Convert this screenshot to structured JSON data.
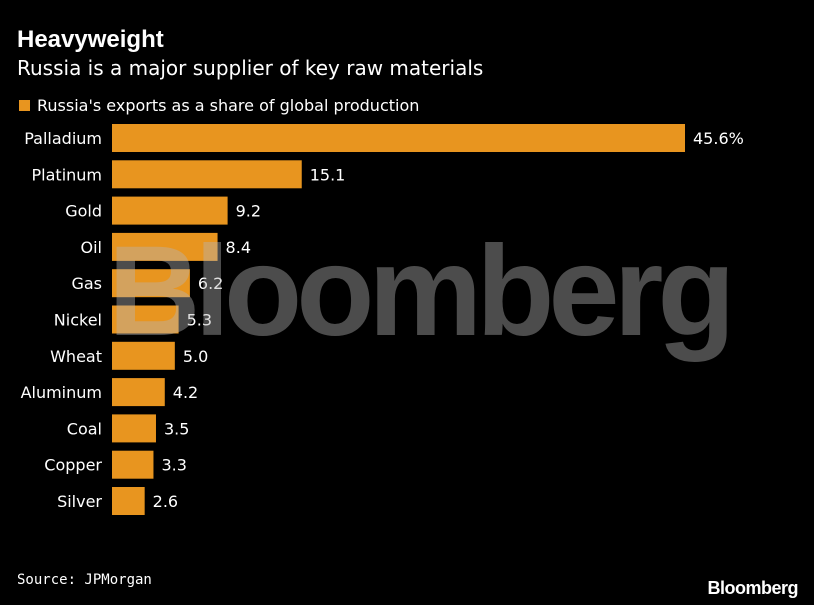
{
  "header": {
    "title": "Heavyweight",
    "subtitle": "Russia is a major supplier of key raw materials"
  },
  "legend": {
    "label": "Russia's exports as a share of global production",
    "color": "#e8951f"
  },
  "chart_data": {
    "type": "bar",
    "orientation": "horizontal",
    "categories": [
      "Palladium",
      "Platinum",
      "Gold",
      "Oil",
      "Gas",
      "Nickel",
      "Wheat",
      "Aluminum",
      "Coal",
      "Copper",
      "Silver"
    ],
    "series": [
      {
        "name": "Russia's exports as a share of global production",
        "values": [
          45.6,
          15.1,
          9.2,
          8.4,
          6.2,
          5.3,
          5.0,
          4.2,
          3.5,
          3.3,
          2.6
        ],
        "labels": [
          "45.6%",
          "15.1",
          "9.2",
          "8.4",
          "6.2",
          "5.3",
          "5.0",
          "4.2",
          "3.5",
          "3.3",
          "2.6"
        ]
      }
    ],
    "xlim": [
      0,
      45.6
    ],
    "grid": false,
    "legend_position": "top-left",
    "bar_color": "#e8951f"
  },
  "watermark": "Bloomberg",
  "footer": {
    "source": "Source: JPMorgan",
    "brand": "Bloomberg"
  }
}
